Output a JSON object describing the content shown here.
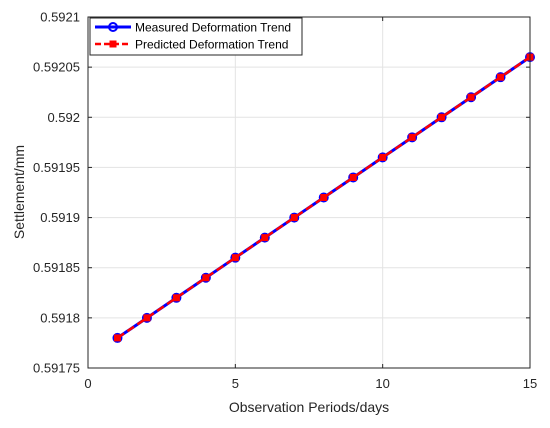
{
  "chart_data": {
    "type": "line",
    "xlabel": "Observation Periods/days",
    "ylabel": "Settlement/mm",
    "xlim": [
      0,
      15
    ],
    "ylim": [
      0.59175,
      0.5921
    ],
    "x_ticks": [
      0,
      5,
      10,
      15
    ],
    "x_tick_labels": [
      "0",
      "5",
      "10",
      "15"
    ],
    "y_ticks": [
      0.59175,
      0.5918,
      0.59185,
      0.5919,
      0.59195,
      0.592,
      0.59205,
      0.5921
    ],
    "y_tick_labels": [
      "0.59175",
      "0.5918",
      "0.59185",
      "0.5919",
      "0.59195",
      "0.592",
      "0.59205",
      "0.5921"
    ],
    "grid": true,
    "legend_position": "top-left",
    "x": [
      1,
      2,
      3,
      4,
      5,
      6,
      7,
      8,
      9,
      10,
      11,
      12,
      13,
      14,
      15
    ],
    "series": [
      {
        "name": "Measured Deformation Trend",
        "color": "#0000ff",
        "line_style": "solid",
        "marker": "circle",
        "values": [
          0.59178,
          0.5918,
          0.59182,
          0.59184,
          0.59186,
          0.59188,
          0.5919,
          0.59192,
          0.59194,
          0.59196,
          0.59198,
          0.592,
          0.59202,
          0.59204,
          0.59206
        ]
      },
      {
        "name": "Predicted Deformation Trend",
        "color": "#ff0000",
        "line_style": "dashed",
        "marker": "square",
        "values": [
          0.59178,
          0.5918,
          0.59182,
          0.59184,
          0.59186,
          0.59188,
          0.5919,
          0.59192,
          0.59194,
          0.59196,
          0.59198,
          0.592,
          0.59202,
          0.59204,
          0.59206
        ]
      }
    ]
  }
}
